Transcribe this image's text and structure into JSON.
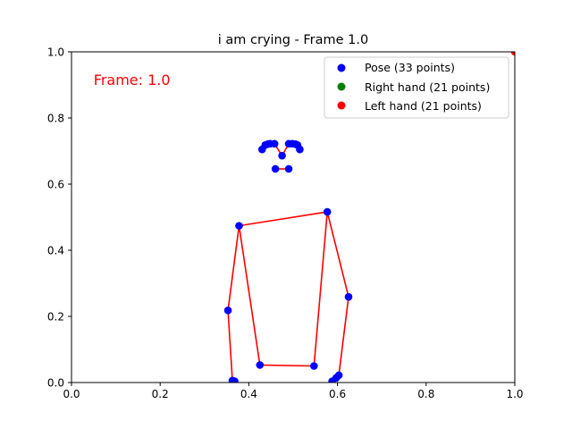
{
  "chart_data": {
    "type": "scatter",
    "title": "i am crying - Frame 1.0",
    "xlabel": "",
    "ylabel": "",
    "xlim": [
      0,
      1
    ],
    "ylim": [
      0,
      1
    ],
    "xticks": [
      "0.0",
      "0.2",
      "0.4",
      "0.6",
      "0.8",
      "1.0"
    ],
    "yticks": [
      "0.0",
      "0.2",
      "0.4",
      "0.6",
      "0.8",
      "1.0"
    ],
    "grid": false,
    "legend_position": "top-right",
    "annotation": {
      "text": "Frame: 1.0",
      "color": "#ff0000"
    },
    "series": [
      {
        "name": "Pose (33 points)",
        "color": "#0000ff",
        "points": [
          [
            0.458,
            0.722
          ],
          [
            0.448,
            0.722
          ],
          [
            0.443,
            0.721
          ],
          [
            0.437,
            0.718
          ],
          [
            0.43,
            0.705
          ],
          [
            0.475,
            0.686
          ],
          [
            0.49,
            0.722
          ],
          [
            0.498,
            0.722
          ],
          [
            0.505,
            0.721
          ],
          [
            0.51,
            0.718
          ],
          [
            0.515,
            0.705
          ],
          [
            0.46,
            0.646
          ],
          [
            0.49,
            0.646
          ],
          [
            0.378,
            0.474
          ],
          [
            0.577,
            0.516
          ],
          [
            0.353,
            0.218
          ],
          [
            0.625,
            0.259
          ],
          [
            0.363,
            0.006
          ],
          [
            0.603,
            0.022
          ],
          [
            0.368,
            0.004
          ],
          [
            0.597,
            0.014
          ],
          [
            0.366,
            0.004
          ],
          [
            0.588,
            0.004
          ],
          [
            0.425,
            0.053
          ],
          [
            0.547,
            0.05
          ]
        ]
      },
      {
        "name": "Right hand (21 points)",
        "color": "#008000",
        "points": []
      },
      {
        "name": "Left hand (21 points)",
        "color": "#ff0000",
        "points": [
          [
            1.0,
            1.0
          ]
        ]
      }
    ],
    "connections": [
      [
        0,
        1
      ],
      [
        1,
        2
      ],
      [
        2,
        3
      ],
      [
        3,
        4
      ],
      [
        0,
        5
      ],
      [
        5,
        6
      ],
      [
        6,
        7
      ],
      [
        7,
        8
      ],
      [
        8,
        9
      ],
      [
        9,
        10
      ],
      [
        11,
        12
      ],
      [
        13,
        14
      ],
      [
        13,
        15
      ],
      [
        15,
        17
      ],
      [
        14,
        16
      ],
      [
        16,
        18
      ],
      [
        13,
        23
      ],
      [
        14,
        24
      ],
      [
        23,
        24
      ]
    ],
    "connection_color": "#ff0000"
  }
}
